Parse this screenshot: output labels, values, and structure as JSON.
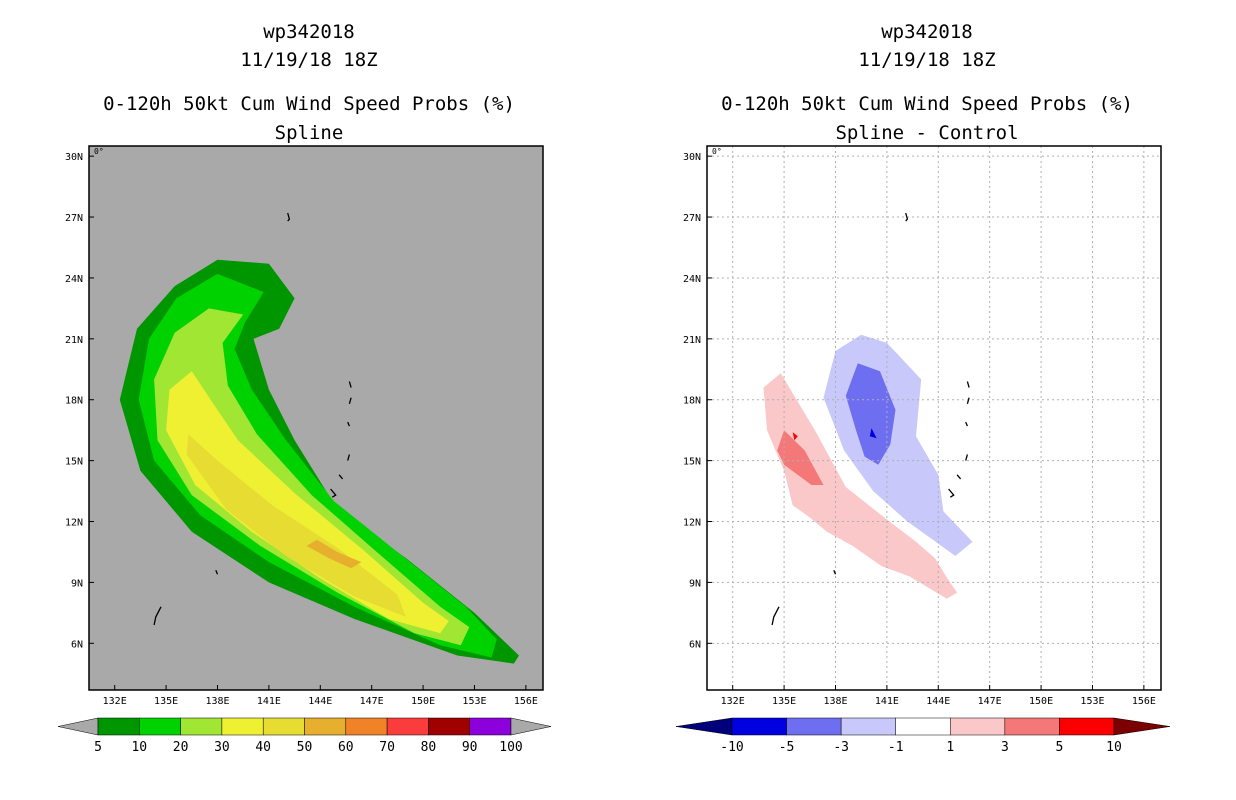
{
  "left": {
    "title_line1": "wp342018",
    "title_line2": "11/19/18 18Z",
    "title_line3": "0-120h 50kt Cum Wind Speed Probs (%)",
    "title_line4": "Spline",
    "corner_label": "0°",
    "background": "#a9a9a9"
  },
  "right": {
    "title_line1": "wp342018",
    "title_line2": "11/19/18 18Z",
    "title_line3": "0-120h 50kt Cum Wind Speed Probs (%)",
    "title_line4": "Spline - Control",
    "corner_label": "0°",
    "background": "#ffffff"
  },
  "axes": {
    "lon_ticks": [
      "132E",
      "135E",
      "138E",
      "141E",
      "144E",
      "147E",
      "150E",
      "153E",
      "156E"
    ],
    "lon_values": [
      132,
      135,
      138,
      141,
      144,
      147,
      150,
      153,
      156
    ],
    "lat_ticks": [
      "30N",
      "27N",
      "24N",
      "21N",
      "18N",
      "15N",
      "12N",
      "9N",
      "6N"
    ],
    "lat_values": [
      30,
      27,
      24,
      21,
      18,
      15,
      12,
      9,
      6
    ],
    "xlim": [
      130.5,
      157
    ],
    "ylim": [
      3.7,
      30.5
    ]
  },
  "chart_data": [
    {
      "type": "heatmap",
      "title": "0-120h 50kt Cum Wind Speed Probs (%) - Spline",
      "units": "%",
      "colorbar_labels": [
        "5",
        "10",
        "20",
        "30",
        "40",
        "50",
        "60",
        "70",
        "80",
        "90",
        "100"
      ],
      "colorbar_colors": [
        "#009600",
        "#00d200",
        "#a0e632",
        "#f0f032",
        "#e6dc32",
        "#e6af2d",
        "#f08228",
        "#fa3c3c",
        "#a00000",
        "#8c00dc"
      ],
      "contours": [
        {
          "level": 5,
          "color": "#009600",
          "lonlat": [
            [
              155.3,
              5.0
            ],
            [
              152,
              5.4
            ],
            [
              146,
              7.2
            ],
            [
              141,
              9.0
            ],
            [
              136.5,
              11.5
            ],
            [
              133.5,
              14.5
            ],
            [
              132.3,
              18
            ],
            [
              133.3,
              21.5
            ],
            [
              135.5,
              23.6
            ],
            [
              138,
              24.9
            ],
            [
              141,
              24.7
            ],
            [
              142.5,
              23
            ],
            [
              141.6,
              21.5
            ],
            [
              140.1,
              21
            ],
            [
              141,
              18.5
            ],
            [
              142.5,
              16
            ],
            [
              145,
              12.6
            ],
            [
              149,
              10.2
            ],
            [
              153,
              7.5
            ],
            [
              155.6,
              5.4
            ]
          ]
        },
        {
          "level": 10,
          "color": "#00d200",
          "lonlat": [
            [
              154,
              5.3
            ],
            [
              151,
              5.9
            ],
            [
              146,
              7.8
            ],
            [
              141,
              10
            ],
            [
              137,
              12.3
            ],
            [
              134.3,
              15
            ],
            [
              133.4,
              18
            ],
            [
              134,
              21
            ],
            [
              135.6,
              23
            ],
            [
              138,
              24.2
            ],
            [
              140.7,
              23.3
            ],
            [
              139.6,
              21.8
            ],
            [
              139,
              20.5
            ],
            [
              140,
              18.5
            ],
            [
              142,
              16
            ],
            [
              144.8,
              13
            ],
            [
              148.5,
              10.5
            ],
            [
              152.5,
              7.8
            ],
            [
              154.3,
              6.2
            ]
          ]
        },
        {
          "level": 20,
          "color": "#a0e632",
          "lonlat": [
            [
              152.2,
              5.9
            ],
            [
              149.5,
              6.5
            ],
            [
              145,
              8.5
            ],
            [
              140.5,
              10.8
            ],
            [
              136.5,
              13.3
            ],
            [
              134.5,
              16
            ],
            [
              134.3,
              19
            ],
            [
              135.5,
              21.3
            ],
            [
              137.5,
              22.5
            ],
            [
              139.5,
              22.2
            ],
            [
              138.3,
              20.8
            ],
            [
              138.6,
              18.7
            ],
            [
              140.3,
              16.3
            ],
            [
              143.5,
              13.3
            ],
            [
              147.3,
              10.5
            ],
            [
              151,
              7.8
            ],
            [
              152.7,
              6.8
            ]
          ]
        },
        {
          "level": 30,
          "color": "#f0f032",
          "lonlat": [
            [
              151,
              6.5
            ],
            [
              148,
              7.2
            ],
            [
              144,
              9.2
            ],
            [
              140,
              11.5
            ],
            [
              136.7,
              13.8
            ],
            [
              135,
              16.5
            ],
            [
              135.2,
              18.5
            ],
            [
              136.5,
              19.4
            ],
            [
              137.6,
              18
            ],
            [
              139.2,
              16
            ],
            [
              142.5,
              13.4
            ],
            [
              146.5,
              10.6
            ],
            [
              150,
              8
            ],
            [
              151.5,
              7.1
            ]
          ]
        },
        {
          "level": 40,
          "color": "#e6dc32",
          "lonlat": [
            [
              149,
              7.3
            ],
            [
              146,
              8.3
            ],
            [
              142,
              10.3
            ],
            [
              138.5,
              12.6
            ],
            [
              136.2,
              15.3
            ],
            [
              136.3,
              16.3
            ],
            [
              138,
              15
            ],
            [
              141.2,
              12.8
            ],
            [
              145,
              10.7
            ],
            [
              148.5,
              8.4
            ]
          ]
        },
        {
          "level": 50,
          "color": "#e6af2d",
          "lonlat": [
            [
              145.8,
              9.7
            ],
            [
              144.5,
              10.2
            ],
            [
              143.2,
              10.8
            ],
            [
              143.8,
              11.1
            ],
            [
              145,
              10.5
            ],
            [
              146.4,
              10
            ]
          ]
        }
      ]
    },
    {
      "type": "heatmap",
      "title": "0-120h 50kt Cum Wind Speed Probs (%) - Spline - Control",
      "units": "%",
      "colorbar_labels": [
        "-10",
        "-5",
        "-3",
        "-1",
        "1",
        "3",
        "5",
        "10"
      ],
      "colorbar_colors": [
        "#0000e1",
        "#6e6ef0",
        "#c8c8fa",
        "#ffffff",
        "#fac8c8",
        "#f57878",
        "#fa0000"
      ],
      "contours": [
        {
          "level": 1,
          "color": "#fac8c8",
          "lonlat": [
            [
              133.8,
              18.6
            ],
            [
              134.8,
              19.3
            ],
            [
              136.8,
              16.5
            ],
            [
              138.6,
              13.7
            ],
            [
              141,
              12.1
            ],
            [
              142.7,
              11
            ],
            [
              143.8,
              10.2
            ],
            [
              144.6,
              9.1
            ],
            [
              145.1,
              8.5
            ],
            [
              144.5,
              8.2
            ],
            [
              143.5,
              8.7
            ],
            [
              142.3,
              9.3
            ],
            [
              140.7,
              9.8
            ],
            [
              139,
              10.8
            ],
            [
              137.5,
              11.5
            ],
            [
              136.5,
              12.2
            ],
            [
              135.5,
              12.8
            ],
            [
              135,
              14.5
            ],
            [
              134,
              16.5
            ]
          ]
        },
        {
          "level": 3,
          "color": "#f57878",
          "lonlat": [
            [
              135,
              16.5
            ],
            [
              136.2,
              15.5
            ],
            [
              137.3,
              13.8
            ],
            [
              136.6,
              13.8
            ],
            [
              135,
              14.8
            ],
            [
              134.6,
              15.5
            ]
          ]
        },
        {
          "level": 5,
          "color": "#fa0000",
          "lonlat": [
            [
              135.5,
              16.4
            ],
            [
              135.8,
              16.2
            ],
            [
              135.6,
              16
            ]
          ]
        },
        {
          "level": -1,
          "color": "#c8c8fa",
          "lonlat": [
            [
              138,
              20.4
            ],
            [
              139.5,
              21.2
            ],
            [
              141,
              20.8
            ],
            [
              143,
              19
            ],
            [
              142.7,
              16.2
            ],
            [
              144,
              14.3
            ],
            [
              144.3,
              12.5
            ],
            [
              146,
              11
            ],
            [
              145,
              10.3
            ],
            [
              142.2,
              12
            ],
            [
              140.2,
              13.5
            ],
            [
              138.5,
              15.5
            ],
            [
              137.3,
              18.1
            ]
          ]
        },
        {
          "level": -3,
          "color": "#6e6ef0",
          "lonlat": [
            [
              139.3,
              19.8
            ],
            [
              140.6,
              19.4
            ],
            [
              141.5,
              17.5
            ],
            [
              141.2,
              15.8
            ],
            [
              140.5,
              14.8
            ],
            [
              139.7,
              15.2
            ],
            [
              139.2,
              16.5
            ],
            [
              138.6,
              18.2
            ]
          ]
        },
        {
          "level": -5,
          "color": "#0000e1",
          "lonlat": [
            [
              140.1,
              16.6
            ],
            [
              140.4,
              16.1
            ],
            [
              140,
              16.2
            ]
          ]
        }
      ]
    }
  ]
}
